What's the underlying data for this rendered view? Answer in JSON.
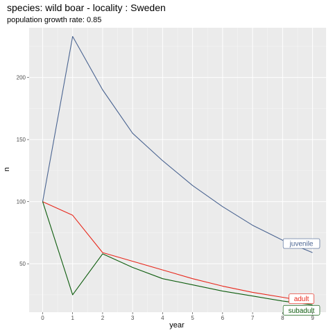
{
  "chart_data": {
    "type": "line",
    "title": "species: wild boar - locality : Sweden",
    "subtitle": "population growth rate: 0.85",
    "xlabel": "year",
    "ylabel": "n",
    "x": [
      0,
      1,
      2,
      3,
      4,
      5,
      6,
      7,
      8,
      9
    ],
    "xlim": [
      -0.45,
      9.45
    ],
    "ylim": [
      11,
      240
    ],
    "x_ticks": [
      0,
      1,
      2,
      3,
      4,
      5,
      6,
      7,
      8,
      9
    ],
    "y_ticks": [
      50,
      100,
      150,
      200
    ],
    "grid": true,
    "legend": "none",
    "colors": {
      "panel_background": "#ebebeb",
      "grid_major": "#ffffff"
    },
    "series": [
      {
        "name": "juvenile",
        "color": "#4a6491",
        "values": [
          100,
          233,
          190,
          155,
          133,
          113,
          96,
          81,
          69,
          59
        ]
      },
      {
        "name": "adult",
        "color": "#e8271b",
        "values": [
          100,
          89,
          59,
          52,
          45,
          38,
          32,
          27,
          23,
          19
        ]
      },
      {
        "name": "subadult",
        "color": "#0d5c0d",
        "values": [
          100,
          25,
          58,
          47,
          38,
          33,
          28,
          24,
          20,
          17
        ]
      }
    ]
  }
}
